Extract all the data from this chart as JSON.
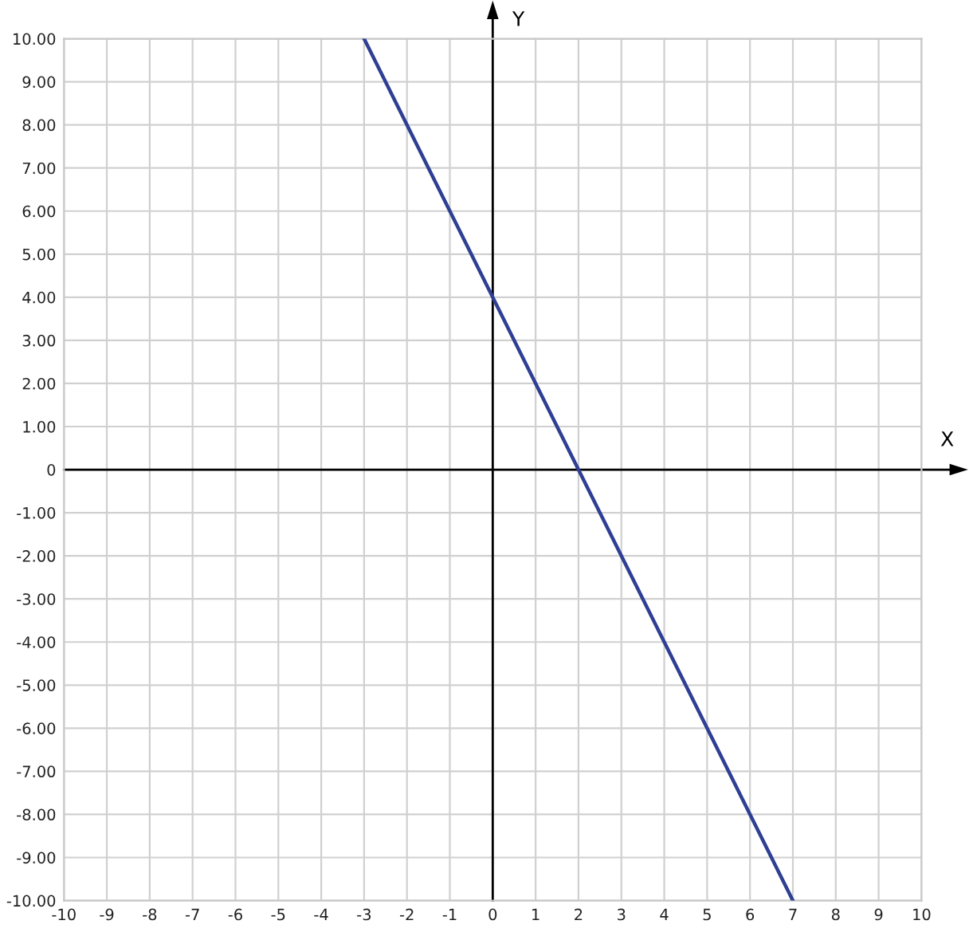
{
  "chart_data": {
    "type": "line",
    "xlabel": "X",
    "ylabel": "Y",
    "x": [
      -3,
      7
    ],
    "series": [
      {
        "color": "#2e3f94",
        "values": [
          10,
          -10
        ]
      }
    ],
    "xlim": [
      -10,
      10
    ],
    "ylim": [
      -10,
      10
    ],
    "xticks": [
      -10,
      -9,
      -8,
      -7,
      -6,
      -5,
      -4,
      -3,
      -2,
      -1,
      0,
      1,
      2,
      3,
      4,
      5,
      6,
      7,
      8,
      9,
      10
    ],
    "yticks": [
      {
        "value": -10,
        "label": "-10.00"
      },
      {
        "value": -9,
        "label": "-9.00"
      },
      {
        "value": -8,
        "label": "-8.00"
      },
      {
        "value": -7,
        "label": "-7.00"
      },
      {
        "value": -6,
        "label": "-6.00"
      },
      {
        "value": -5,
        "label": "-5.00"
      },
      {
        "value": -4,
        "label": "-4.00"
      },
      {
        "value": -3,
        "label": "-3.00"
      },
      {
        "value": -2,
        "label": "-2.00"
      },
      {
        "value": -1,
        "label": "-1.00"
      },
      0,
      {
        "value": 1,
        "label": "1.00"
      },
      {
        "value": 2,
        "label": "2.00"
      },
      {
        "value": 3,
        "label": "3.00"
      },
      {
        "value": 4,
        "label": "4.00"
      },
      {
        "value": 5,
        "label": "5.00"
      },
      {
        "value": 6,
        "label": "6.00"
      },
      {
        "value": 7,
        "label": "7.00"
      },
      {
        "value": 8,
        "label": "8.00"
      },
      {
        "value": 9,
        "label": "9.00"
      },
      {
        "value": 10,
        "label": "10.00"
      }
    ],
    "grid": true,
    "marker": "none",
    "line_style": "solid"
  }
}
